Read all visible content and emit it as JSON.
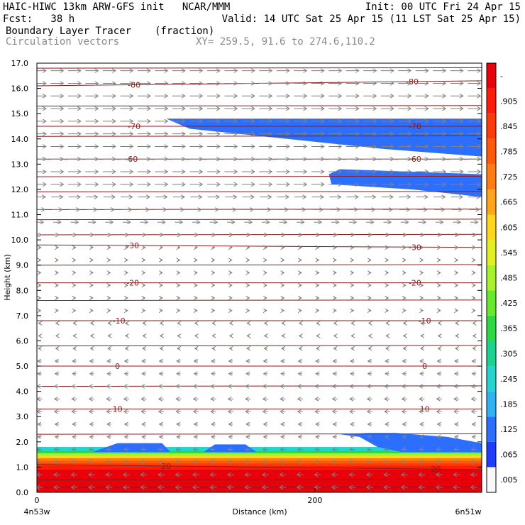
{
  "header": {
    "line1_left": "HAIC-HIWC 13km ARW-GFS init   NCAR/MMM",
    "line1_right": "Init: 00 UTC Fri 24 Apr 15",
    "line2_left": "Fcst:   38 h",
    "line2_right": "Valid: 14 UTC Sat 25 Apr 15 (11 LST Sat 25 Apr 15)",
    "line3_field": "Boundary Layer Tracer",
    "line3_units": "(fraction)",
    "line4_field": "Circulation vectors",
    "line4_xy": "XY= 259.5, 91.6 to 274.6,110.2"
  },
  "chart_data": {
    "type": "heatmap",
    "xlabel": "Distance (km)",
    "ylabel": "Height (km)",
    "xlim": [
      0,
      320
    ],
    "ylim": [
      0,
      17
    ],
    "x_ticks": [
      0,
      200
    ],
    "x_end_labels": [
      "4n53w",
      "6n51w"
    ],
    "y_ticks": [
      "0.0",
      "1.0",
      "2.0",
      "3.0",
      "4.0",
      "5.0",
      "6.0",
      "7.0",
      "8.0",
      "9.0",
      "10.0",
      "11.0",
      "12.0",
      "13.0",
      "14.0",
      "15.0",
      "16.0",
      "17.0"
    ],
    "colorbar_labels": [
      ".005",
      ".065",
      ".125",
      ".185",
      ".245",
      ".305",
      ".365",
      ".425",
      ".485",
      ".545",
      ".605",
      ".665",
      ".725",
      ".785",
      ".845",
      ".905",
      "-"
    ],
    "colorbar_colors": [
      "#f8f8f8",
      "#1e3cff",
      "#2c6fff",
      "#2fb2f2",
      "#27d3cf",
      "#19d38e",
      "#2cd945",
      "#67e92c",
      "#a6f22c",
      "#e4ef22",
      "#ffd61a",
      "#ffa51a",
      "#ff7c12",
      "#ff5a0a",
      "#ff3a0a",
      "#ff1a0a",
      "#e8000a"
    ],
    "temperature_contours": {
      "color": "#8b1a1a",
      "levels": [
        {
          "value": "-80",
          "y_left": 16.1,
          "y_right": 16.3,
          "labels_x": [
            70,
            270
          ]
        },
        {
          "value": "-70",
          "y_left": 14.5,
          "y_right": 14.5,
          "labels_x": [
            70,
            272
          ]
        },
        {
          "value": "-60",
          "y_left": 13.2,
          "y_right": 13.2,
          "labels_x": [
            68,
            272
          ]
        },
        {
          "value": "-30",
          "y_left": 9.8,
          "y_right": 9.7,
          "labels_x": [
            69,
            272
          ]
        },
        {
          "value": "-20",
          "y_left": 8.3,
          "y_right": 8.3,
          "labels_x": [
            69,
            272
          ]
        },
        {
          "value": "-10",
          "y_left": 6.8,
          "y_right": 6.8,
          "labels_x": [
            59,
            279
          ]
        },
        {
          "value": "0",
          "y_left": 5.0,
          "y_right": 5.0,
          "labels_x": [
            58,
            279
          ]
        },
        {
          "value": "10",
          "y_left": 3.3,
          "y_right": 3.3,
          "labels_x": [
            58,
            279
          ]
        },
        {
          "value": "20",
          "y_left": 1.1,
          "y_right": 0.9,
          "labels_x": [
            93,
            287
          ]
        }
      ],
      "unlabeled_y": [
        16.8,
        15.3,
        14.1,
        12.5,
        11.9,
        11.2,
        10.8,
        10.2,
        9.0,
        7.6,
        5.8,
        4.2,
        2.3,
        0.5,
        0.2
      ]
    },
    "tracer_regions": [
      {
        "name": "upper",
        "value": 0.065,
        "polygon": [
          [
            93,
            14.8
          ],
          [
            320,
            14.8
          ],
          [
            320,
            13.3
          ],
          [
            250,
            13.6
          ],
          [
            180,
            14.0
          ],
          [
            110,
            14.4
          ]
        ]
      },
      {
        "name": "mid",
        "value": 0.065,
        "polygon": [
          [
            210,
            12.6
          ],
          [
            218,
            12.8
          ],
          [
            320,
            12.6
          ],
          [
            320,
            11.7
          ],
          [
            270,
            12.0
          ],
          [
            212,
            12.2
          ]
        ]
      },
      {
        "name": "pbl-top-1",
        "value": 0.065,
        "polygon": [
          [
            40,
            1.6
          ],
          [
            58,
            1.95
          ],
          [
            90,
            1.95
          ],
          [
            96,
            1.6
          ]
        ]
      },
      {
        "name": "pbl-top-2",
        "value": 0.065,
        "polygon": [
          [
            120,
            1.6
          ],
          [
            128,
            1.9
          ],
          [
            150,
            1.9
          ],
          [
            158,
            1.6
          ]
        ]
      },
      {
        "name": "pbl-top-3",
        "value": 0.065,
        "polygon": [
          [
            218,
            2.3
          ],
          [
            232,
            2.2
          ],
          [
            245,
            1.8
          ],
          [
            262,
            1.6
          ],
          [
            320,
            1.6
          ],
          [
            320,
            1.95
          ],
          [
            295,
            2.2
          ],
          [
            258,
            2.35
          ],
          [
            238,
            2.35
          ]
        ]
      }
    ],
    "boundary_layer_profile": [
      {
        "y": 1.8,
        "value": 0.185
      },
      {
        "y": 1.65,
        "value": 0.305
      },
      {
        "y": 1.55,
        "value": 0.425
      },
      {
        "y": 1.45,
        "value": 0.545
      },
      {
        "y": 1.35,
        "value": 0.665
      },
      {
        "y": 1.25,
        "value": 0.725
      },
      {
        "y": 1.15,
        "value": 0.785
      },
      {
        "y": 1.05,
        "value": 0.845
      },
      {
        "y": 0.9,
        "value": 0.905
      },
      {
        "y": 0.6,
        "value": 0.965
      }
    ],
    "circulation_vectors": {
      "x_spacing_km": 12.5,
      "rows_km": [
        16.7,
        16.2,
        15.7,
        15.2,
        14.7,
        14.2,
        13.7,
        13.2,
        12.7,
        12.2,
        11.7,
        11.2,
        10.7,
        10.2,
        9.7,
        9.2,
        8.7,
        8.2,
        7.7,
        7.2,
        6.7,
        6.2,
        5.7,
        5.2,
        4.7,
        4.2,
        3.7,
        3.2,
        2.7,
        2.2,
        1.7,
        1.2,
        0.7,
        0.2
      ],
      "east_component": [
        1.0,
        1.0,
        1.0,
        1.0,
        1.0,
        1.0,
        1.0,
        1.0,
        1.0,
        1.0,
        0.9,
        0.8,
        0.6,
        0.3,
        0.2,
        0.1,
        0.1,
        0.1,
        0.1,
        0.0,
        -0.1,
        -0.1,
        -0.2,
        -0.3,
        -0.3,
        -0.4,
        -0.4,
        -0.4,
        -0.3,
        -0.3,
        -0.4,
        -0.5,
        -0.5,
        -0.5
      ],
      "color": "#808080"
    }
  }
}
